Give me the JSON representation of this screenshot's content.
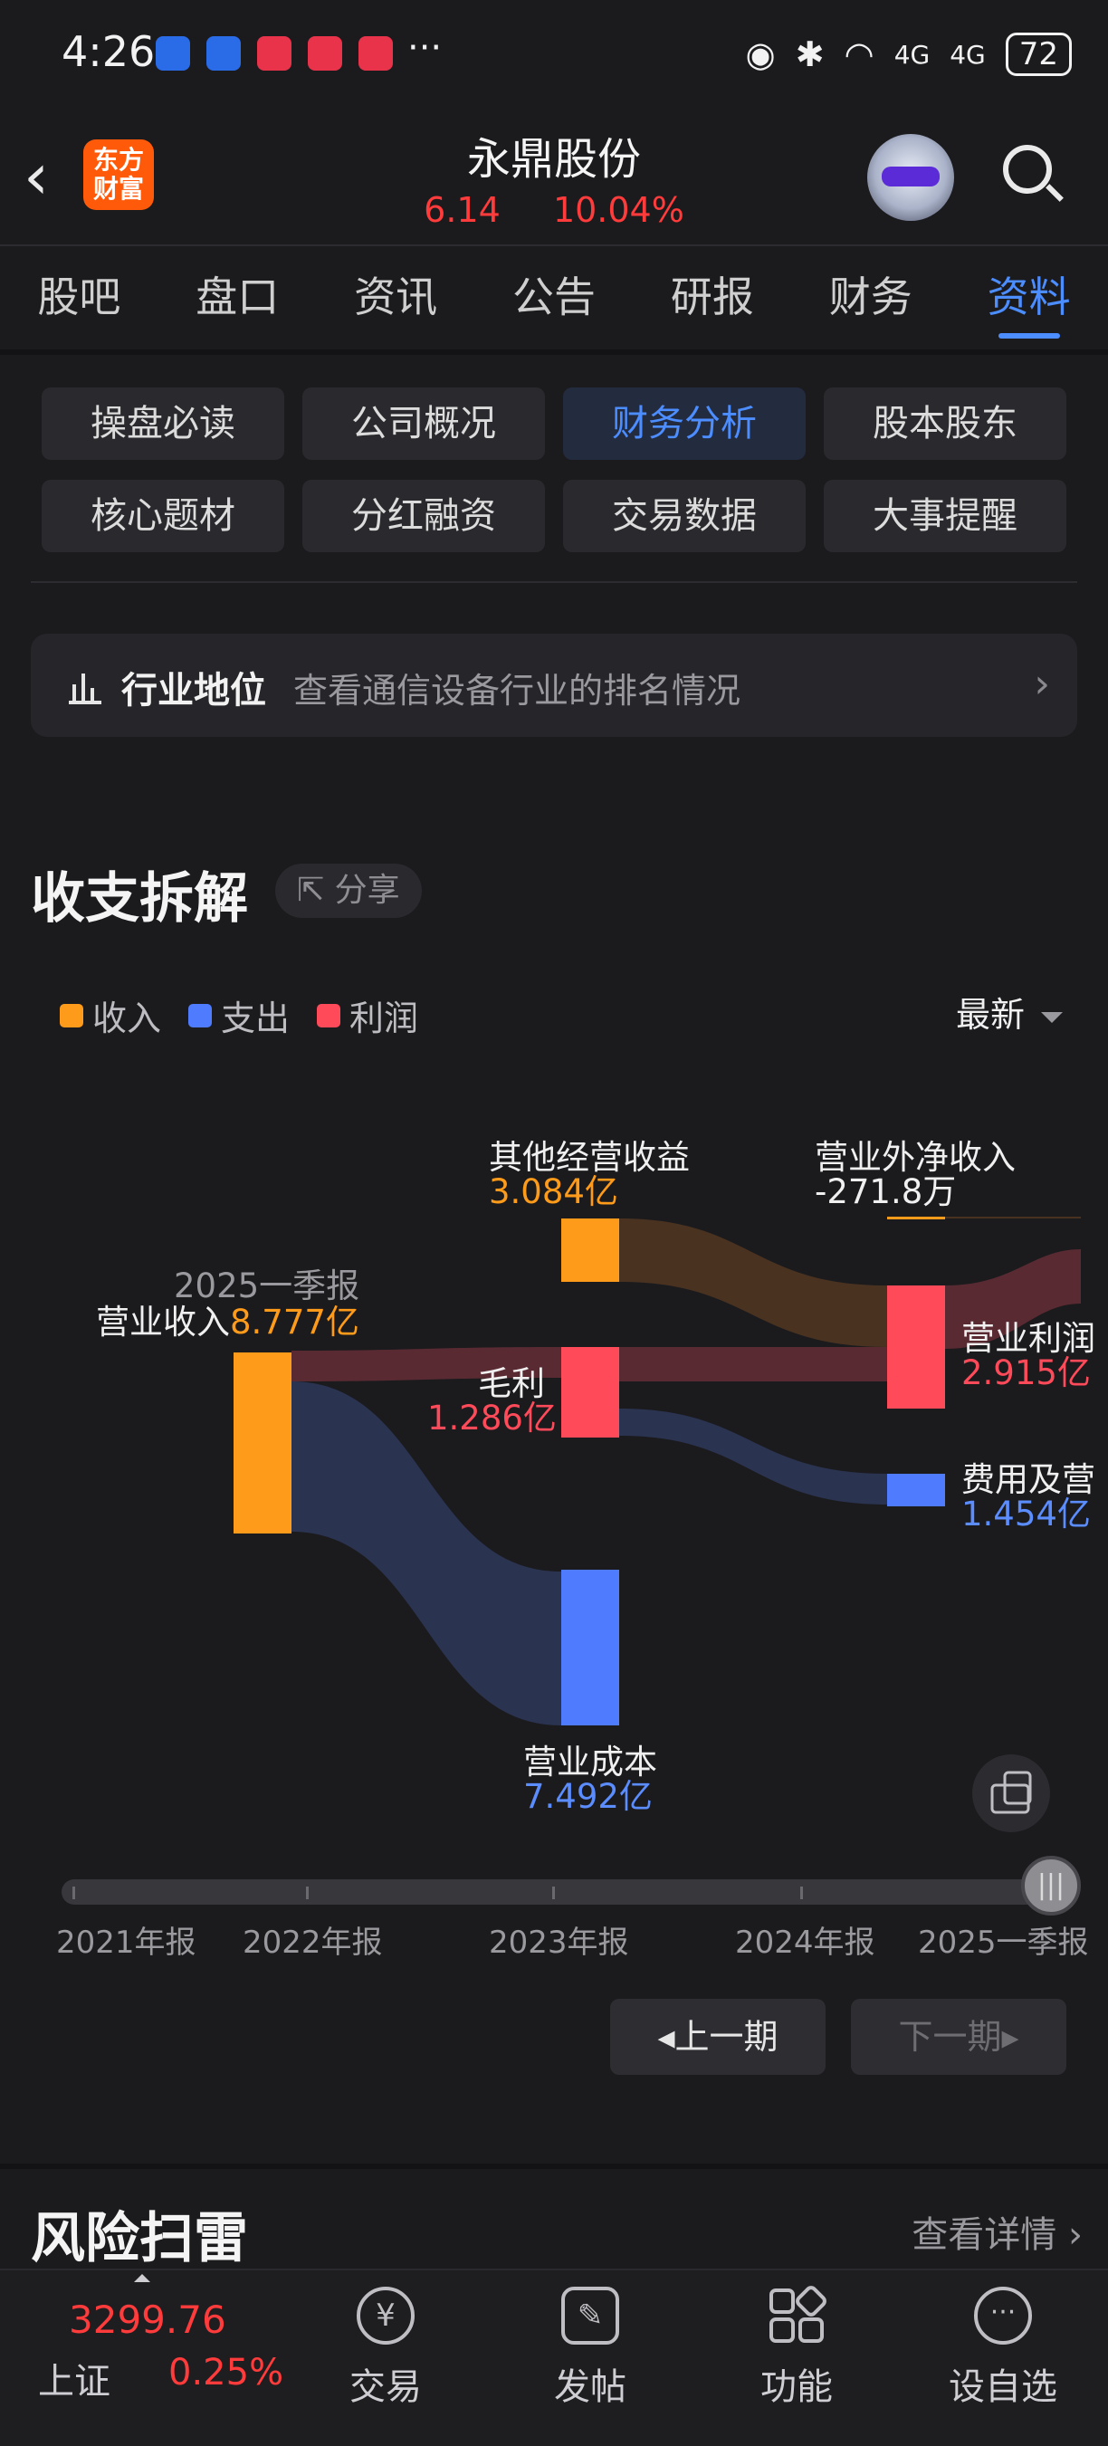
{
  "status_bar": {
    "time": "4:26",
    "battery": "72",
    "network1": "4G",
    "network2": "4G"
  },
  "header": {
    "back_icon": "back-arrow-icon",
    "logo_text_top": "东方",
    "logo_text_bottom": "财富",
    "stock_name": "永鼎股份",
    "price": "6.14",
    "change_pct": "10.04%"
  },
  "tabs": [
    {
      "label": "股吧"
    },
    {
      "label": "盘口"
    },
    {
      "label": "资讯"
    },
    {
      "label": "公告"
    },
    {
      "label": "研报"
    },
    {
      "label": "财务"
    },
    {
      "label": "资料",
      "active": true
    }
  ],
  "grid": [
    {
      "label": "操盘必读"
    },
    {
      "label": "公司概况"
    },
    {
      "label": "财务分析",
      "active": true
    },
    {
      "label": "股本股东"
    },
    {
      "label": "核心题材"
    },
    {
      "label": "分红融资"
    },
    {
      "label": "交易数据"
    },
    {
      "label": "大事提醒"
    }
  ],
  "industry": {
    "title": "行业地位",
    "desc": "查看通信设备行业的排名情况",
    "chevron": "›"
  },
  "section": {
    "title": "收支拆解",
    "share_label": "分享"
  },
  "legend": [
    {
      "label": "收入",
      "color": "#ff9b1a"
    },
    {
      "label": "支出",
      "color": "#4f7bff"
    },
    {
      "label": "利润",
      "color": "#ff4a5a"
    }
  ],
  "period_selector": "最新",
  "sankey": {
    "period": "2025一季报",
    "revenue_label": "营业收入",
    "revenue_value": "8.777亿",
    "other_income_label": "其他经营收益",
    "other_income_value": "3.084亿",
    "non_op_label": "营业外净收入",
    "non_op_value": "-271.8万",
    "gross_label": "毛利",
    "gross_value": "1.286亿",
    "op_profit_label": "营业利润",
    "op_profit_value": "2.915亿",
    "expense_label": "费用及营",
    "expense_value": "1.454亿",
    "cost_label": "营业成本",
    "cost_value": "7.492亿"
  },
  "timeline": {
    "labels": [
      "2021年报",
      "2022年报",
      "2023年报",
      "2024年报",
      "2025一季报"
    ],
    "selected_index": 4
  },
  "nav_buttons": {
    "prev": "上一期",
    "next": "下一期"
  },
  "risk": {
    "title": "风险扫雷",
    "more": "查看详情"
  },
  "bottom_nav": {
    "index_value": "3299.76",
    "index_name": "上证",
    "index_change": "0.25%",
    "items": [
      {
        "label": "交易"
      },
      {
        "label": "发帖"
      },
      {
        "label": "功能"
      },
      {
        "label": "设自选"
      }
    ]
  }
}
